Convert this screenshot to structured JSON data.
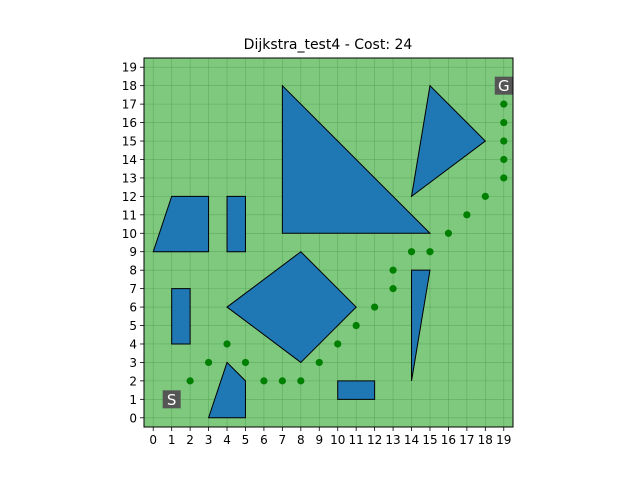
{
  "chart_data": {
    "type": "scatter",
    "title": "Dijkstra_test4 - Cost: 24",
    "xlabel": "",
    "ylabel": "",
    "xlim": [
      -0.5,
      19.5
    ],
    "ylim": [
      -0.5,
      19.5
    ],
    "x_ticks": [
      "0",
      "1",
      "2",
      "3",
      "4",
      "5",
      "6",
      "7",
      "8",
      "9",
      "10",
      "11",
      "12",
      "13",
      "14",
      "15",
      "16",
      "17",
      "18",
      "19"
    ],
    "y_ticks": [
      "0",
      "1",
      "2",
      "3",
      "4",
      "5",
      "6",
      "7",
      "8",
      "9",
      "10",
      "11",
      "12",
      "13",
      "14",
      "15",
      "16",
      "17",
      "18",
      "19"
    ],
    "grid": true,
    "colors": {
      "background": "#7fc97f",
      "grid": "#4f9f4f",
      "obstacle": "#1f77b4",
      "obstacle_edge": "#000000",
      "path": "#008000",
      "marker_bg": "#555555",
      "marker_text": "#ffffff"
    },
    "start": {
      "label": "S",
      "x": 1,
      "y": 1
    },
    "goal": {
      "label": "G",
      "x": 19,
      "y": 18
    },
    "obstacles": [
      {
        "name": "parallelogram",
        "points": [
          [
            0,
            9
          ],
          [
            1,
            12
          ],
          [
            3,
            12
          ],
          [
            3,
            9
          ]
        ]
      },
      {
        "name": "small-rect",
        "points": [
          [
            4,
            9
          ],
          [
            4,
            12
          ],
          [
            5,
            12
          ],
          [
            5,
            9
          ]
        ]
      },
      {
        "name": "large-triangle",
        "points": [
          [
            7,
            10
          ],
          [
            7,
            18
          ],
          [
            15,
            10
          ]
        ]
      },
      {
        "name": "upper-right-triangle",
        "points": [
          [
            14,
            12
          ],
          [
            15,
            18
          ],
          [
            18,
            15
          ]
        ]
      },
      {
        "name": "diamond",
        "points": [
          [
            4,
            6
          ],
          [
            8,
            9
          ],
          [
            11,
            6
          ],
          [
            8,
            3
          ]
        ]
      },
      {
        "name": "tall-rect",
        "points": [
          [
            1,
            4
          ],
          [
            1,
            7
          ],
          [
            2,
            7
          ],
          [
            2,
            4
          ]
        ]
      },
      {
        "name": "thin-triangle",
        "points": [
          [
            14,
            2
          ],
          [
            14,
            8
          ],
          [
            15,
            8
          ]
        ]
      },
      {
        "name": "bottom-quad",
        "points": [
          [
            3,
            0
          ],
          [
            4,
            3
          ],
          [
            5,
            2
          ],
          [
            5,
            0
          ]
        ]
      },
      {
        "name": "flat-rect",
        "points": [
          [
            10,
            1
          ],
          [
            10,
            2
          ],
          [
            12,
            2
          ],
          [
            12,
            1
          ]
        ]
      }
    ],
    "path": [
      [
        2,
        2
      ],
      [
        3,
        3
      ],
      [
        4,
        4
      ],
      [
        5,
        3
      ],
      [
        6,
        2
      ],
      [
        7,
        2
      ],
      [
        8,
        2
      ],
      [
        9,
        3
      ],
      [
        10,
        4
      ],
      [
        11,
        5
      ],
      [
        12,
        6
      ],
      [
        13,
        7
      ],
      [
        13,
        8
      ],
      [
        14,
        9
      ],
      [
        15,
        9
      ],
      [
        16,
        10
      ],
      [
        17,
        11
      ],
      [
        18,
        12
      ],
      [
        19,
        13
      ],
      [
        19,
        14
      ],
      [
        19,
        15
      ],
      [
        19,
        16
      ],
      [
        19,
        17
      ]
    ]
  }
}
